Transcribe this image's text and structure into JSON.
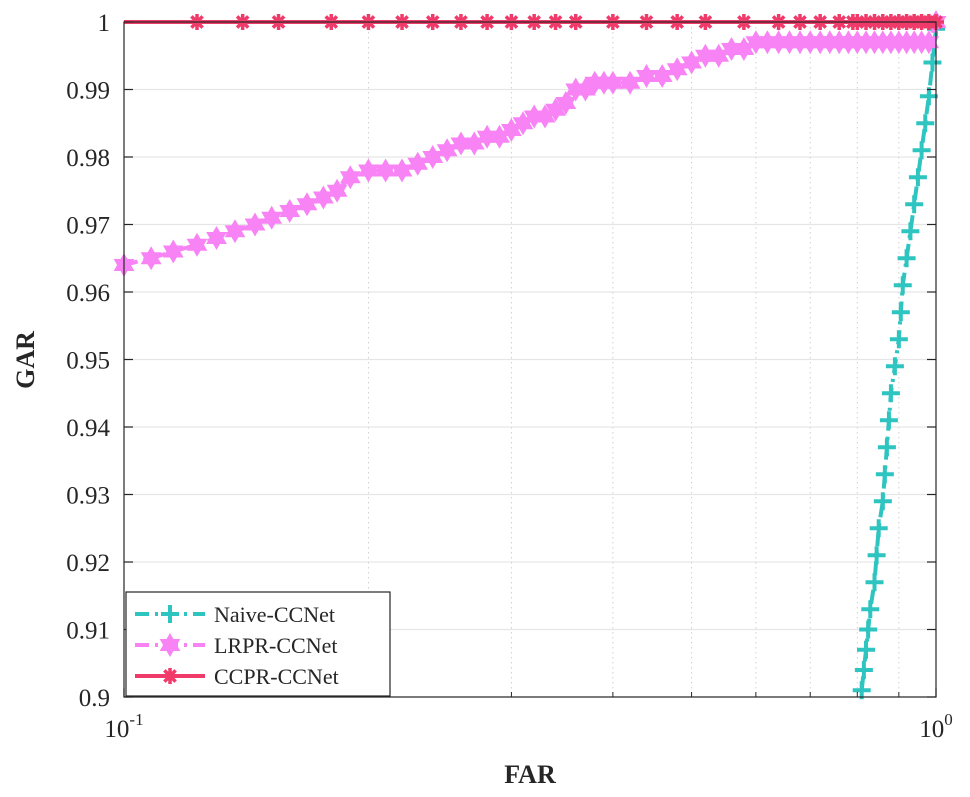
{
  "chart_data": {
    "type": "line",
    "xscale": "log",
    "xlim": [
      0.1,
      1.0
    ],
    "ylim": [
      0.9,
      1.0
    ],
    "xlabel": "FAR",
    "ylabel": "GAR",
    "x_ticks": [
      {
        "value": 0.1,
        "base": "10",
        "exp": "-1"
      },
      {
        "value": 1.0,
        "base": "10",
        "exp": "0"
      }
    ],
    "y_ticks": [
      {
        "value": 0.9,
        "label": "0.9"
      },
      {
        "value": 0.91,
        "label": "0.91"
      },
      {
        "value": 0.92,
        "label": "0.92"
      },
      {
        "value": 0.93,
        "label": "0.93"
      },
      {
        "value": 0.94,
        "label": "0.94"
      },
      {
        "value": 0.95,
        "label": "0.95"
      },
      {
        "value": 0.96,
        "label": "0.96"
      },
      {
        "value": 0.97,
        "label": "0.97"
      },
      {
        "value": 0.98,
        "label": "0.98"
      },
      {
        "value": 0.99,
        "label": "0.99"
      },
      {
        "value": 1.0,
        "label": "1"
      }
    ],
    "grid": true,
    "legend_position": "bottom-left",
    "series": [
      {
        "name": "Naive-CCNet",
        "color": "#2ec4c0",
        "marker": "plus",
        "line_style": "dashdot",
        "x": [
          0.81,
          0.815,
          0.82,
          0.825,
          0.83,
          0.84,
          0.845,
          0.85,
          0.86,
          0.865,
          0.87,
          0.875,
          0.88,
          0.89,
          0.9,
          0.905,
          0.91,
          0.92,
          0.93,
          0.94,
          0.95,
          0.96,
          0.97,
          0.98,
          0.99,
          1.0
        ],
        "y": [
          0.901,
          0.904,
          0.907,
          0.91,
          0.913,
          0.917,
          0.921,
          0.925,
          0.929,
          0.933,
          0.937,
          0.941,
          0.945,
          0.949,
          0.953,
          0.957,
          0.961,
          0.965,
          0.969,
          0.973,
          0.977,
          0.981,
          0.985,
          0.989,
          0.994,
          0.999
        ]
      },
      {
        "name": "LRPR-CCNet",
        "color": "#f883f5",
        "marker": "hexagram",
        "line_style": "dashdot",
        "x": [
          0.1,
          0.108,
          0.115,
          0.123,
          0.13,
          0.137,
          0.145,
          0.152,
          0.16,
          0.168,
          0.176,
          0.183,
          0.19,
          0.2,
          0.21,
          0.22,
          0.23,
          0.24,
          0.25,
          0.26,
          0.27,
          0.28,
          0.29,
          0.3,
          0.31,
          0.32,
          0.33,
          0.34,
          0.35,
          0.36,
          0.37,
          0.38,
          0.39,
          0.4,
          0.42,
          0.44,
          0.46,
          0.48,
          0.5,
          0.52,
          0.54,
          0.56,
          0.58,
          0.6,
          0.62,
          0.64,
          0.66,
          0.68,
          0.7,
          0.72,
          0.74,
          0.76,
          0.78,
          0.8,
          0.82,
          0.84,
          0.86,
          0.88,
          0.9,
          0.92,
          0.94,
          0.96,
          0.98,
          1.0
        ],
        "y": [
          0.964,
          0.965,
          0.966,
          0.967,
          0.968,
          0.969,
          0.97,
          0.971,
          0.972,
          0.973,
          0.974,
          0.975,
          0.977,
          0.978,
          0.978,
          0.978,
          0.979,
          0.98,
          0.981,
          0.982,
          0.982,
          0.983,
          0.983,
          0.984,
          0.985,
          0.986,
          0.986,
          0.987,
          0.988,
          0.99,
          0.99,
          0.991,
          0.991,
          0.991,
          0.991,
          0.992,
          0.992,
          0.993,
          0.994,
          0.995,
          0.995,
          0.996,
          0.996,
          0.997,
          0.997,
          0.997,
          0.997,
          0.997,
          0.997,
          0.997,
          0.997,
          0.997,
          0.997,
          0.997,
          0.997,
          0.997,
          0.997,
          0.997,
          0.997,
          0.997,
          0.997,
          0.997,
          0.997,
          1.0
        ]
      },
      {
        "name": "CCPR-CCNet",
        "color": "#f03a6a",
        "marker": "asterisk",
        "line_style": "solid",
        "x": [
          0.1,
          0.123,
          0.14,
          0.155,
          0.18,
          0.2,
          0.22,
          0.24,
          0.26,
          0.28,
          0.3,
          0.32,
          0.34,
          0.36,
          0.4,
          0.44,
          0.48,
          0.52,
          0.58,
          0.64,
          0.68,
          0.72,
          0.76,
          0.79,
          0.8,
          0.82,
          0.84,
          0.86,
          0.88,
          0.9,
          0.92,
          0.94,
          0.96,
          0.98,
          1.0
        ],
        "y": [
          1.0,
          1.0,
          1.0,
          1.0,
          1.0,
          1.0,
          1.0,
          1.0,
          1.0,
          1.0,
          1.0,
          1.0,
          1.0,
          1.0,
          1.0,
          1.0,
          1.0,
          1.0,
          1.0,
          1.0,
          1.0,
          1.0,
          1.0,
          1.0,
          1.0,
          1.0,
          1.0,
          1.0,
          1.0,
          1.0,
          1.0,
          1.0,
          1.0,
          1.0,
          1.0
        ],
        "marker_x": [
          0.123,
          0.14,
          0.155,
          0.18,
          0.2,
          0.22,
          0.24,
          0.26,
          0.28,
          0.3,
          0.32,
          0.34,
          0.36,
          0.4,
          0.44,
          0.48,
          0.52,
          0.58,
          0.64,
          0.68,
          0.72,
          0.76,
          0.79,
          0.8,
          0.82,
          0.84,
          0.86,
          0.88,
          0.9,
          0.92,
          0.94,
          0.96,
          0.98,
          1.0
        ]
      }
    ]
  }
}
